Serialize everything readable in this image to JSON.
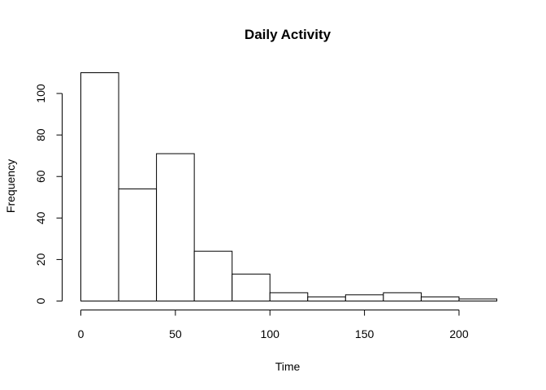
{
  "chart_data": {
    "type": "bar",
    "title": "Daily Activity",
    "xlabel": "Time",
    "ylabel": "Frequency",
    "bins": [
      {
        "start": 0,
        "end": 20,
        "value": 110
      },
      {
        "start": 20,
        "end": 40,
        "value": 54
      },
      {
        "start": 40,
        "end": 60,
        "value": 71
      },
      {
        "start": 60,
        "end": 80,
        "value": 24
      },
      {
        "start": 80,
        "end": 100,
        "value": 13
      },
      {
        "start": 100,
        "end": 120,
        "value": 4
      },
      {
        "start": 120,
        "end": 140,
        "value": 2
      },
      {
        "start": 140,
        "end": 160,
        "value": 3
      },
      {
        "start": 160,
        "end": 180,
        "value": 4
      },
      {
        "start": 180,
        "end": 200,
        "value": 2
      },
      {
        "start": 200,
        "end": 220,
        "value": 1
      }
    ],
    "xlim": [
      0,
      220
    ],
    "ylim": [
      0,
      110
    ],
    "x_ticks": [
      0,
      50,
      100,
      150,
      200
    ],
    "y_ticks": [
      0,
      20,
      40,
      60,
      80,
      100
    ],
    "grid": false,
    "colors": {
      "bar_fill": "#ffffff",
      "bar_stroke": "#000000"
    }
  }
}
